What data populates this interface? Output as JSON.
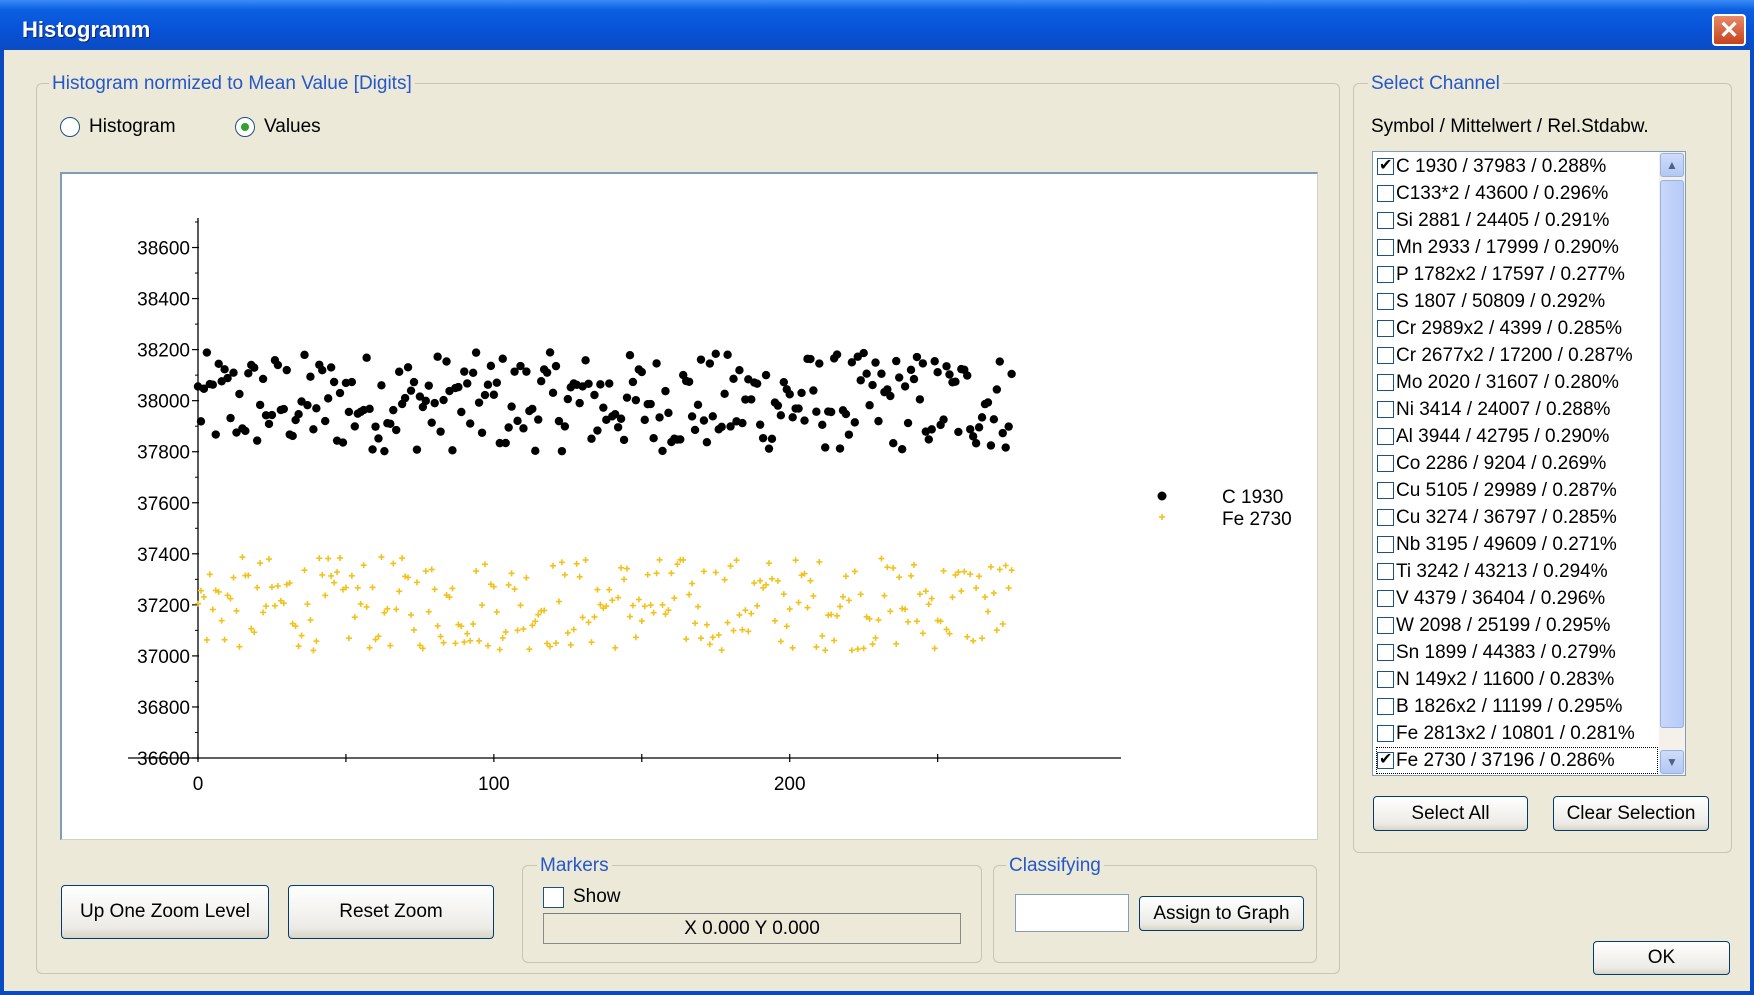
{
  "window": {
    "title": "Histogramm"
  },
  "histogram_group": {
    "label": "Histogram normized to Mean Value [Digits]",
    "radio_histogram": "Histogram",
    "radio_values": "Values",
    "selected": "Values"
  },
  "buttons": {
    "up_zoom": "Up One Zoom Level",
    "reset_zoom": "Reset Zoom",
    "assign": "Assign to Graph",
    "select_all": "Select All",
    "clear_selection": "Clear Selection",
    "ok": "OK"
  },
  "markers": {
    "label": "Markers",
    "show": "Show",
    "show_checked": false,
    "coords": "X 0.000    Y 0.000"
  },
  "classifying": {
    "label": "Classifying",
    "value": ""
  },
  "channel": {
    "label": "Select Channel",
    "header": "Symbol / Mittelwert / Rel.Stdabw.",
    "items": [
      {
        "text": "C 1930 / 37983 / 0.288%",
        "checked": true
      },
      {
        "text": "C133*2 / 43600 / 0.296%",
        "checked": false
      },
      {
        "text": "Si 2881 / 24405 / 0.291%",
        "checked": false
      },
      {
        "text": "Mn 2933 / 17999 / 0.290%",
        "checked": false
      },
      {
        "text": "P 1782x2 / 17597 / 0.277%",
        "checked": false
      },
      {
        "text": "S 1807 / 50809 / 0.292%",
        "checked": false
      },
      {
        "text": "Cr 2989x2 / 4399 / 0.285%",
        "checked": false
      },
      {
        "text": "Cr 2677x2 / 17200 / 0.287%",
        "checked": false
      },
      {
        "text": "Mo 2020 / 31607 / 0.280%",
        "checked": false
      },
      {
        "text": "Ni 3414 / 24007 / 0.288%",
        "checked": false
      },
      {
        "text": "Al 3944 / 42795 / 0.290%",
        "checked": false
      },
      {
        "text": "Co 2286 / 9204 / 0.269%",
        "checked": false
      },
      {
        "text": "Cu 5105 / 29989 / 0.287%",
        "checked": false
      },
      {
        "text": "Cu 3274 / 36797 / 0.285%",
        "checked": false
      },
      {
        "text": "Nb 3195 / 49609 / 0.271%",
        "checked": false
      },
      {
        "text": "Ti 3242 / 43213 / 0.294%",
        "checked": false
      },
      {
        "text": "V 4379 / 36404 / 0.296%",
        "checked": false
      },
      {
        "text": "W 2098 / 25199 / 0.295%",
        "checked": false
      },
      {
        "text": "Sn 1899 / 44383 / 0.279%",
        "checked": false
      },
      {
        "text": "N 149x2 / 11600 / 0.283%",
        "checked": false
      },
      {
        "text": "B 1826x2 / 11199 / 0.295%",
        "checked": false
      },
      {
        "text": "Fe 2813x2 / 10801 / 0.281%",
        "checked": false
      },
      {
        "text": "Fe 2730 / 37196 / 0.286%",
        "checked": true
      }
    ]
  },
  "chart_data": {
    "type": "scatter",
    "x_range": [
      0,
      290
    ],
    "ylim": [
      36600,
      38700
    ],
    "x_ticks": [
      0,
      100,
      200
    ],
    "y_ticks": [
      36600,
      36800,
      37000,
      37200,
      37400,
      37600,
      37800,
      38000,
      38200,
      38400,
      38600
    ],
    "grid": false,
    "legend_position": "right",
    "series": [
      {
        "name": "C 1930",
        "color": "#000000",
        "marker": "dot",
        "n_points": 276,
        "mean": 37983,
        "y_min": 37800,
        "y_max": 38190
      },
      {
        "name": "Fe 2730",
        "color": "#f2c21a",
        "marker": "plus",
        "n_points": 276,
        "mean": 37196,
        "y_min": 37020,
        "y_max": 37390
      }
    ]
  }
}
